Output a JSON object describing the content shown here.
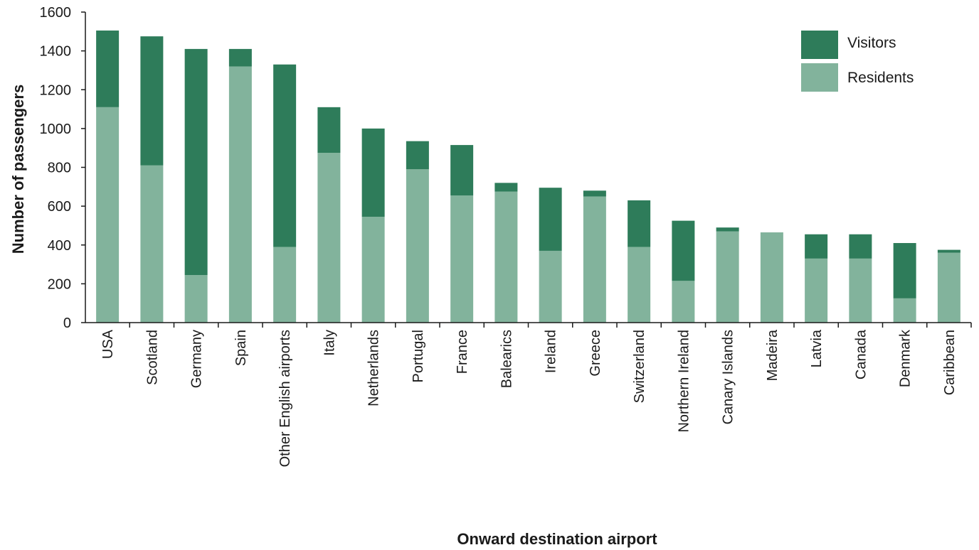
{
  "chart_data": {
    "type": "bar",
    "stacked": true,
    "title": "",
    "xlabel": "Onward destination airport",
    "ylabel": "Number of passengers",
    "ylim": [
      0,
      1600
    ],
    "yticks": [
      "0",
      "200",
      "400",
      "600",
      "800",
      "1000",
      "1200",
      "1400",
      "1600"
    ],
    "grid": false,
    "legend": "top-right",
    "categories": [
      "USA",
      "Scotland",
      "Germany",
      "Spain",
      "Other English airports",
      "Italy",
      "Netherlands",
      "Portugal",
      "France",
      "Balearics",
      "Ireland",
      "Greece",
      "Switzerland",
      "Northern Ireland",
      "Canary Islands",
      "Madeira",
      "Latvia",
      "Canada",
      "Denmark",
      "Caribbean"
    ],
    "series": [
      {
        "name": "Residents",
        "color": "#82b39c",
        "values": [
          1110,
          810,
          245,
          1320,
          390,
          875,
          545,
          790,
          655,
          675,
          370,
          650,
          390,
          215,
          470,
          465,
          330,
          330,
          125,
          360
        ]
      },
      {
        "name": "Visitors",
        "color": "#2e7c5a",
        "values": [
          395,
          665,
          1165,
          90,
          940,
          235,
          455,
          145,
          260,
          45,
          325,
          30,
          240,
          310,
          20,
          0,
          125,
          125,
          285,
          15
        ]
      }
    ]
  }
}
